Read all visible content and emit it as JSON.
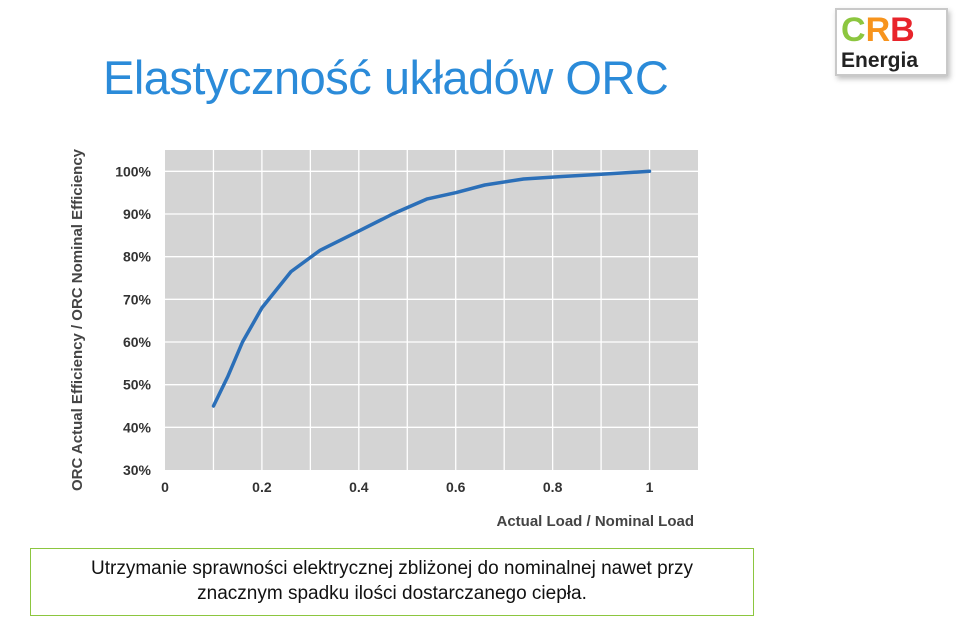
{
  "title": "Elastyczność układów ORC",
  "logo": {
    "letters": [
      {
        "char": "C",
        "color": "#8cc63f"
      },
      {
        "char": "R",
        "color": "#f7941d"
      },
      {
        "char": "B",
        "color": "#e8242b"
      }
    ],
    "subtitle": "Energia"
  },
  "chart_data": {
    "type": "line",
    "xlabel": "Actual Load / Nominal Load",
    "ylabel": "ORC Actual Efficiency / ORC Nominal Efficiency",
    "xlim": [
      0,
      1.1
    ],
    "ylim": [
      0.3,
      1.05
    ],
    "x_ticks": [
      {
        "value": 0,
        "label": "0"
      },
      {
        "value": 0.2,
        "label": "0.2"
      },
      {
        "value": 0.4,
        "label": "0.4"
      },
      {
        "value": 0.6,
        "label": "0.6"
      },
      {
        "value": 0.8,
        "label": "0.8"
      },
      {
        "value": 1.0,
        "label": "1"
      }
    ],
    "y_ticks": [
      {
        "value": 0.3,
        "label": "30%"
      },
      {
        "value": 0.4,
        "label": "40%"
      },
      {
        "value": 0.5,
        "label": "50%"
      },
      {
        "value": 0.6,
        "label": "60%"
      },
      {
        "value": 0.7,
        "label": "70%"
      },
      {
        "value": 0.8,
        "label": "80%"
      },
      {
        "value": 0.9,
        "label": "90%"
      },
      {
        "value": 1.0,
        "label": "100%"
      }
    ],
    "grid": true,
    "colors": {
      "line": "#2b6fb8",
      "plot_bg": "#d4d4d4",
      "grid": "#ffffff"
    },
    "series": [
      {
        "x": [
          0.1,
          0.13,
          0.16,
          0.2,
          0.26,
          0.32,
          0.4,
          0.47,
          0.54,
          0.6,
          0.66,
          0.74,
          0.82,
          0.9,
          1.0
        ],
        "y": [
          0.45,
          0.52,
          0.6,
          0.68,
          0.765,
          0.815,
          0.86,
          0.9,
          0.935,
          0.95,
          0.968,
          0.982,
          0.988,
          0.993,
          1.0
        ]
      }
    ]
  },
  "caption": {
    "line1": "Utrzymanie sprawności elektrycznej zbliżonej do nominalnej nawet przy",
    "line2": "znacznym spadku ilości dostarczanego ciepła."
  }
}
